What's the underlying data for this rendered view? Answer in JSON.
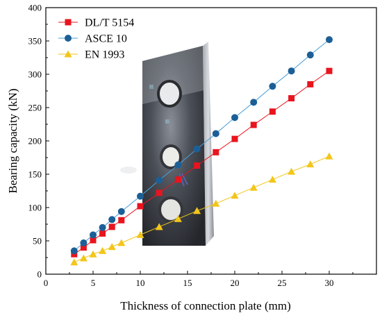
{
  "chart_data": {
    "type": "line",
    "title": "",
    "xlabel": "Thickness of connection plate (mm)",
    "ylabel": "Bearing capacity (kN)",
    "xlim": [
      0,
      35
    ],
    "ylim": [
      0,
      400
    ],
    "xticks": [
      0,
      5,
      10,
      15,
      20,
      25,
      30
    ],
    "yticks": [
      0,
      50,
      100,
      150,
      200,
      250,
      300,
      350,
      400
    ],
    "grid": false,
    "legend_position": "top-left",
    "x": [
      3,
      4,
      5,
      6,
      7,
      8,
      10,
      12,
      14,
      16,
      18,
      20,
      22,
      24,
      26,
      28,
      30
    ],
    "series": [
      {
        "name": "DL/T 5154",
        "color": "#e8141e",
        "marker": "square",
        "values": [
          30,
          40,
          51,
          61,
          71,
          81,
          102,
          122,
          142,
          163,
          183,
          203,
          224,
          244,
          264,
          285,
          305
        ]
      },
      {
        "name": "ASCE 10",
        "color": "#1c5f96",
        "line_color": "#4a9fd8",
        "marker": "circle",
        "values": [
          35,
          47,
          59,
          70,
          82,
          94,
          117,
          141,
          164,
          188,
          211,
          235,
          258,
          282,
          305,
          329,
          352
        ]
      },
      {
        "name": "EN 1993",
        "color": "#f2c61a",
        "marker": "triangle",
        "values": [
          18,
          24,
          30,
          35,
          41,
          47,
          59,
          71,
          83,
          95,
          106,
          118,
          130,
          142,
          154,
          165,
          177
        ]
      }
    ]
  }
}
